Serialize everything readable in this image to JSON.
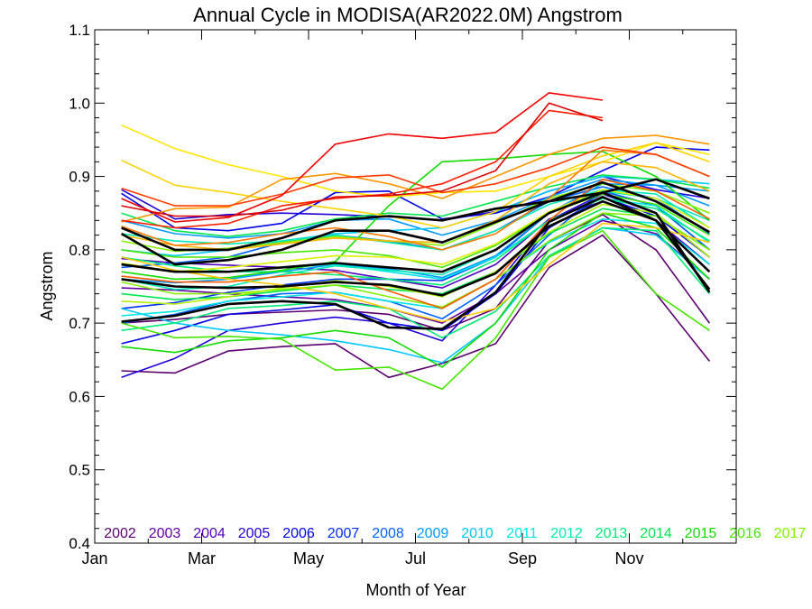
{
  "chart_data": {
    "type": "line",
    "title": "Annual Cycle in MODISA(AR2022.0M) Angstrom",
    "xlabel": "Month of Year",
    "ylabel": "Angstrom",
    "xlim": [
      1,
      13
    ],
    "ylim": [
      0.4,
      1.1
    ],
    "x_ticks": [
      {
        "value": 1,
        "label": "Jan"
      },
      {
        "value": 3,
        "label": "Mar"
      },
      {
        "value": 5,
        "label": "May"
      },
      {
        "value": 7,
        "label": "Jul"
      },
      {
        "value": 9,
        "label": "Sep"
      },
      {
        "value": 11,
        "label": "Nov"
      }
    ],
    "y_ticks": [
      {
        "value": 0.4,
        "label": "0.4"
      },
      {
        "value": 0.5,
        "label": "0.5"
      },
      {
        "value": 0.6,
        "label": "0.6"
      },
      {
        "value": 0.7,
        "label": "0.7"
      },
      {
        "value": 0.8,
        "label": "0.8"
      },
      {
        "value": 0.9,
        "label": "0.9"
      },
      {
        "value": 1.0,
        "label": "1.0"
      },
      {
        "value": 1.1,
        "label": "1.1"
      }
    ],
    "grid": false,
    "legend_placement": "bottom",
    "months": [
      1.5,
      2.5,
      3.5,
      4.5,
      5.5,
      6.5,
      7.5,
      8.5,
      9.5,
      10.5,
      11.5,
      12.5
    ],
    "series": [
      {
        "name": "2002",
        "color": "#5a006e",
        "values": [
          0.635,
          0.632,
          0.662,
          0.668,
          0.672,
          0.626,
          0.645,
          0.672,
          0.776,
          0.82,
          0.74,
          0.648
        ]
      },
      {
        "name": "",
        "color": "#5a006e",
        "values": [
          0.7,
          0.705,
          0.712,
          0.715,
          0.718,
          0.712,
          0.69,
          0.72,
          0.812,
          0.848,
          0.8,
          0.7
        ]
      },
      {
        "name": "2003",
        "color": "#6400a0",
        "values": [
          0.748,
          0.745,
          0.74,
          0.736,
          0.732,
          0.72,
          0.7,
          0.74,
          0.8,
          0.84,
          0.822,
          0.76
        ]
      },
      {
        "name": "2004",
        "color": "#5000c0",
        "values": [
          0.788,
          0.782,
          0.779,
          0.776,
          0.772,
          0.76,
          0.748,
          0.78,
          0.842,
          0.866,
          0.84,
          0.78
        ]
      },
      {
        "name": "2005",
        "color": "#2000d8",
        "values": [
          0.626,
          0.652,
          0.69,
          0.7,
          0.708,
          0.7,
          0.676,
          0.752,
          0.84,
          0.876,
          0.85,
          0.79
        ]
      },
      {
        "name": "",
        "color": "#2000d8",
        "values": [
          0.882,
          0.842,
          0.848,
          0.85,
          0.848,
          0.845,
          0.84,
          0.852,
          0.88,
          0.9,
          0.882,
          0.87
        ]
      },
      {
        "name": "2006",
        "color": "#0000e6",
        "values": [
          0.877,
          0.83,
          0.826,
          0.836,
          0.878,
          0.88,
          0.842,
          0.85,
          0.872,
          0.908,
          0.94,
          0.936
        ]
      },
      {
        "name": "",
        "color": "#0000e6",
        "values": [
          0.672,
          0.69,
          0.712,
          0.718,
          0.725,
          0.7,
          0.69,
          0.74,
          0.83,
          0.872,
          0.846,
          0.79
        ]
      },
      {
        "name": "2007",
        "color": "#0030f0",
        "values": [
          0.72,
          0.728,
          0.742,
          0.752,
          0.76,
          0.76,
          0.758,
          0.79,
          0.85,
          0.88,
          0.86,
          0.8
        ]
      },
      {
        "name": "2008",
        "color": "#0064ff",
        "values": [
          0.776,
          0.782,
          0.79,
          0.81,
          0.82,
          0.812,
          0.8,
          0.826,
          0.866,
          0.886,
          0.87,
          0.822
        ]
      },
      {
        "name": "",
        "color": "#0064ff",
        "values": [
          0.7,
          0.712,
          0.73,
          0.74,
          0.742,
          0.73,
          0.706,
          0.752,
          0.82,
          0.88,
          0.86,
          0.8
        ]
      },
      {
        "name": "2009",
        "color": "#009bff",
        "values": [
          0.76,
          0.755,
          0.76,
          0.77,
          0.78,
          0.774,
          0.762,
          0.792,
          0.85,
          0.89,
          0.888,
          0.88
        ]
      },
      {
        "name": "",
        "color": "#009bff",
        "values": [
          0.84,
          0.822,
          0.816,
          0.822,
          0.84,
          0.842,
          0.82,
          0.84,
          0.872,
          0.896,
          0.888,
          0.86
        ]
      },
      {
        "name": "2010",
        "color": "#00c8ff",
        "values": [
          0.72,
          0.7,
          0.69,
          0.684,
          0.676,
          0.664,
          0.646,
          0.7,
          0.79,
          0.83,
          0.82,
          0.76
        ]
      },
      {
        "name": "",
        "color": "#00c8ff",
        "values": [
          0.8,
          0.792,
          0.8,
          0.812,
          0.822,
          0.826,
          0.83,
          0.852,
          0.88,
          0.9,
          0.896,
          0.89
        ]
      },
      {
        "name": "2011",
        "color": "#00e6e6",
        "values": [
          0.78,
          0.77,
          0.77,
          0.776,
          0.78,
          0.77,
          0.76,
          0.79,
          0.84,
          0.87,
          0.86,
          0.81
        ]
      },
      {
        "name": "",
        "color": "#00e6e6",
        "values": [
          0.71,
          0.716,
          0.73,
          0.736,
          0.742,
          0.73,
          0.72,
          0.76,
          0.81,
          0.842,
          0.836,
          0.78
        ]
      },
      {
        "name": "2012",
        "color": "#00ebb4",
        "values": [
          0.76,
          0.746,
          0.75,
          0.766,
          0.778,
          0.772,
          0.766,
          0.8,
          0.852,
          0.88,
          0.87,
          0.84
        ]
      },
      {
        "name": "",
        "color": "#00ebb4",
        "values": [
          0.822,
          0.812,
          0.808,
          0.812,
          0.82,
          0.81,
          0.8,
          0.826,
          0.862,
          0.882,
          0.876,
          0.83
        ]
      },
      {
        "name": "2013",
        "color": "#00eb78",
        "values": [
          0.79,
          0.778,
          0.77,
          0.77,
          0.766,
          0.76,
          0.752,
          0.786,
          0.84,
          0.87,
          0.856,
          0.812
        ]
      },
      {
        "name": "",
        "color": "#00eb78",
        "values": [
          0.69,
          0.7,
          0.72,
          0.724,
          0.73,
          0.72,
          0.68,
          0.716,
          0.792,
          0.83,
          0.826,
          0.74
        ]
      },
      {
        "name": "2014",
        "color": "#00e650",
        "values": [
          0.85,
          0.826,
          0.818,
          0.826,
          0.842,
          0.85,
          0.846,
          0.866,
          0.886,
          0.902,
          0.896,
          0.884
        ]
      },
      {
        "name": "",
        "color": "#00e650",
        "values": [
          0.74,
          0.732,
          0.736,
          0.744,
          0.752,
          0.746,
          0.74,
          0.77,
          0.822,
          0.856,
          0.846,
          0.8
        ]
      },
      {
        "name": "2015",
        "color": "#14dc00",
        "values": [
          0.77,
          0.76,
          0.762,
          0.772,
          0.784,
          0.86,
          0.92,
          0.924,
          0.93,
          0.934,
          0.9,
          0.84
        ]
      },
      {
        "name": "",
        "color": "#14dc00",
        "values": [
          0.668,
          0.66,
          0.676,
          0.68,
          0.69,
          0.68,
          0.64,
          0.7,
          0.8,
          0.85,
          0.83,
          0.76
        ]
      },
      {
        "name": "2016",
        "color": "#46e600",
        "values": [
          0.7,
          0.68,
          0.682,
          0.678,
          0.636,
          0.64,
          0.61,
          0.68,
          0.79,
          0.826,
          0.74,
          0.69
        ]
      },
      {
        "name": "",
        "color": "#46e600",
        "values": [
          0.8,
          0.79,
          0.79,
          0.796,
          0.8,
          0.792,
          0.776,
          0.806,
          0.85,
          0.876,
          0.862,
          0.82
        ]
      },
      {
        "name": "2017",
        "color": "#82f000",
        "values": [
          0.756,
          0.74,
          0.74,
          0.746,
          0.752,
          0.736,
          0.722,
          0.76,
          0.812,
          0.85,
          0.846,
          0.8
        ]
      },
      {
        "name": "",
        "color": "#82f000",
        "values": [
          0.812,
          0.798,
          0.802,
          0.81,
          0.818,
          0.812,
          0.806,
          0.836,
          0.87,
          0.89,
          0.88,
          0.85
        ]
      },
      {
        "name": "",
        "color": "#b4f000",
        "values": [
          0.73,
          0.726,
          0.736,
          0.748,
          0.758,
          0.75,
          0.736,
          0.77,
          0.824,
          0.862,
          0.85,
          0.79
        ]
      },
      {
        "name": "",
        "color": "#dcf000",
        "values": [
          0.782,
          0.77,
          0.776,
          0.784,
          0.792,
          0.79,
          0.78,
          0.808,
          0.852,
          0.882,
          0.87,
          0.83
        ]
      },
      {
        "name": "",
        "color": "#ffe600",
        "values": [
          0.97,
          0.938,
          0.916,
          0.9,
          0.88,
          0.872,
          0.878,
          0.88,
          0.9,
          0.92,
          0.946,
          0.93
        ]
      },
      {
        "name": "",
        "color": "#ffd200",
        "values": [
          0.922,
          0.888,
          0.878,
          0.866,
          0.856,
          0.846,
          0.83,
          0.852,
          0.9,
          0.928,
          0.946,
          0.92
        ]
      },
      {
        "name": "",
        "color": "#ffc800",
        "values": [
          0.79,
          0.772,
          0.76,
          0.752,
          0.74,
          0.72,
          0.702,
          0.72,
          0.78,
          0.836,
          0.83,
          0.81
        ]
      },
      {
        "name": "",
        "color": "#ffb400",
        "values": [
          0.82,
          0.806,
          0.8,
          0.808,
          0.816,
          0.812,
          0.81,
          0.84,
          0.89,
          0.92,
          0.912,
          0.88
        ]
      },
      {
        "name": "",
        "color": "#ff9600",
        "values": [
          0.838,
          0.856,
          0.858,
          0.896,
          0.904,
          0.89,
          0.87,
          0.9,
          0.93,
          0.952,
          0.956,
          0.944
        ]
      },
      {
        "name": "",
        "color": "#ff7800",
        "values": [
          0.832,
          0.806,
          0.81,
          0.822,
          0.83,
          0.818,
          0.8,
          0.822,
          0.87,
          0.936,
          0.93,
          0.9
        ]
      },
      {
        "name": "",
        "color": "#ff5a00",
        "values": [
          0.764,
          0.756,
          0.756,
          0.764,
          0.77,
          0.744,
          0.72,
          0.76,
          0.84,
          0.896,
          0.88,
          0.842
        ]
      },
      {
        "name": "",
        "color": "#ff3c00",
        "values": [
          0.884,
          0.86,
          0.86,
          0.876,
          0.898,
          0.902,
          0.878,
          0.89,
          0.912,
          0.94,
          0.93,
          0.9
        ]
      },
      {
        "name": "",
        "color": "#ff1e00",
        "values": [
          0.84,
          0.83,
          0.836,
          0.86,
          0.87,
          0.876,
          0.89,
          0.92,
          0.99,
          0.98,
          null,
          null
        ]
      },
      {
        "name": "",
        "color": "#f00000",
        "values": [
          0.87,
          0.838,
          0.844,
          0.874,
          0.944,
          0.958,
          0.952,
          0.96,
          1.014,
          1.004,
          null,
          null
        ]
      },
      {
        "name": "",
        "color": "#dc0000",
        "values": [
          0.86,
          0.846,
          0.846,
          0.854,
          0.872,
          0.874,
          0.88,
          0.908,
          1.0,
          0.976,
          null,
          null
        ]
      },
      {
        "name": "",
        "color": "#000000",
        "width": 2.6,
        "values": [
          0.83,
          0.8,
          0.8,
          0.816,
          0.84,
          0.846,
          0.84,
          0.856,
          0.866,
          0.878,
          0.896,
          0.87
        ]
      },
      {
        "name": "",
        "color": "#000000",
        "width": 2.6,
        "values": [
          0.822,
          0.78,
          0.786,
          0.8,
          0.826,
          0.826,
          0.81,
          0.838,
          0.866,
          0.892,
          0.866,
          0.824
        ]
      },
      {
        "name": "",
        "color": "#000000",
        "width": 2.6,
        "values": [
          0.78,
          0.77,
          0.77,
          0.776,
          0.782,
          0.776,
          0.77,
          0.8,
          0.85,
          0.878,
          0.85,
          0.742
        ]
      },
      {
        "name": "",
        "color": "#000000",
        "width": 2.6,
        "values": [
          0.76,
          0.75,
          0.748,
          0.75,
          0.756,
          0.752,
          0.738,
          0.768,
          0.832,
          0.866,
          0.84,
          0.77
        ]
      },
      {
        "name": "",
        "color": "#000000",
        "width": 2.6,
        "values": [
          0.702,
          0.71,
          0.726,
          0.73,
          0.726,
          0.694,
          0.692,
          0.742,
          0.838,
          0.872,
          0.84,
          0.746
        ]
      }
    ],
    "legend": [
      {
        "label": "2002",
        "color": "#5a006e"
      },
      {
        "label": "2003",
        "color": "#6400a0"
      },
      {
        "label": "2004",
        "color": "#5000c0"
      },
      {
        "label": "2005",
        "color": "#2000d8"
      },
      {
        "label": "2006",
        "color": "#0000e6"
      },
      {
        "label": "2007",
        "color": "#0030f0"
      },
      {
        "label": "2008",
        "color": "#0064ff"
      },
      {
        "label": "2009",
        "color": "#009bff"
      },
      {
        "label": "2010",
        "color": "#00c8ff"
      },
      {
        "label": "2011",
        "color": "#00e6e6"
      },
      {
        "label": "2012",
        "color": "#00ebb4"
      },
      {
        "label": "2013",
        "color": "#00eb78"
      },
      {
        "label": "2014",
        "color": "#00e650"
      },
      {
        "label": "2015",
        "color": "#14dc00"
      },
      {
        "label": "2016",
        "color": "#46e600"
      },
      {
        "label": "2017",
        "color": "#82f000"
      }
    ]
  }
}
